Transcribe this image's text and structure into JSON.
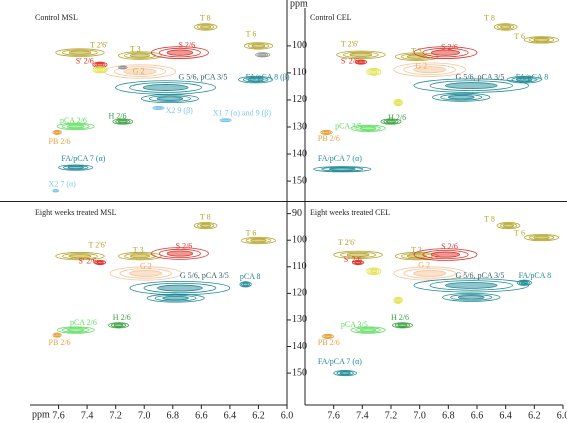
{
  "chart_data": [
    {
      "type": "contour",
      "title": "Control MSL",
      "ylabel": "ppm",
      "xlim": [
        7.8,
        6.0
      ],
      "ylim": [
        86,
        157
      ],
      "yticks": [
        100,
        110,
        120,
        130,
        140,
        150
      ],
      "peaks": [
        {
          "x": 6.57,
          "y": 93,
          "dx": 0.08,
          "dy": 1.2,
          "color": "#b5a42a"
        },
        {
          "x": 6.2,
          "y": 100,
          "dx": 0.1,
          "dy": 1.2,
          "color": "#b5a42a"
        },
        {
          "x": 7.45,
          "y": 102.5,
          "dx": 0.17,
          "dy": 1.4,
          "color": "#b5a42a"
        },
        {
          "x": 7.03,
          "y": 103.6,
          "dx": 0.15,
          "dy": 1.4,
          "color": "#b5a42a"
        },
        {
          "x": 6.75,
          "y": 102.5,
          "dx": 0.2,
          "dy": 2.2,
          "color": "#e0302a"
        },
        {
          "x": 7.31,
          "y": 107,
          "dx": 0.05,
          "dy": 1,
          "color": "#e0302a"
        },
        {
          "x": 7.03,
          "y": 109.5,
          "dx": 0.25,
          "dy": 2.5,
          "color": "#f5c49a"
        },
        {
          "x": 7.31,
          "y": 108.8,
          "dx": 0.05,
          "dy": 1.2,
          "color": "#e0e040"
        },
        {
          "x": 6.85,
          "y": 115.4,
          "dx": 0.35,
          "dy": 2.5,
          "color": "#1f8a96"
        },
        {
          "x": 6.82,
          "y": 119.5,
          "dx": 0.2,
          "dy": 1.5,
          "color": "#1f8a96"
        },
        {
          "x": 6.22,
          "y": 112.5,
          "dx": 0.12,
          "dy": 1.2,
          "color": "#1f8a96"
        },
        {
          "x": 6.43,
          "y": 127.5,
          "dx": 0.04,
          "dy": 0.6,
          "color": "#80c8e8"
        },
        {
          "x": 6.9,
          "y": 123,
          "dx": 0.04,
          "dy": 0.6,
          "color": "#80c8e8"
        },
        {
          "x": 7.15,
          "y": 128,
          "dx": 0.07,
          "dy": 1,
          "color": "#3aa040"
        },
        {
          "x": 7.48,
          "y": 129.8,
          "dx": 0.13,
          "dy": 1.2,
          "color": "#5fdd5f"
        },
        {
          "x": 7.61,
          "y": 132,
          "dx": 0.03,
          "dy": 0.8,
          "color": "#e8a040"
        },
        {
          "x": 7.48,
          "y": 145,
          "dx": 0.12,
          "dy": 1,
          "color": "#1f8a96"
        },
        {
          "x": 7.62,
          "y": 153.6,
          "dx": 0.02,
          "dy": 0.5,
          "color": "#80c8e8"
        },
        {
          "x": 7.15,
          "y": 108,
          "dx": 0.03,
          "dy": 0.6,
          "color": "#999999"
        },
        {
          "x": 6.17,
          "y": 103.3,
          "dx": 0.05,
          "dy": 0.8,
          "color": "#999999"
        }
      ],
      "labels": [
        {
          "text": "T 8",
          "x": 6.61,
          "y": 90,
          "color": "#b5a42a"
        },
        {
          "text": "T 6",
          "x": 6.29,
          "y": 95.9,
          "color": "#b5a42a"
        },
        {
          "text": "T 2'6'",
          "x": 7.38,
          "y": 100,
          "color": "#b5a42a"
        },
        {
          "text": "T 3",
          "x": 7.1,
          "y": 101.4,
          "color": "#b5a42a"
        },
        {
          "text": "S 2/6",
          "x": 6.76,
          "y": 100,
          "color": "#e0302a"
        },
        {
          "text": "S' 2/6",
          "x": 7.48,
          "y": 105.9,
          "color": "#e0302a"
        },
        {
          "text": "G 2",
          "x": 7.08,
          "y": 109.5,
          "color": "#f0a050"
        },
        {
          "text": "G 5/6, pCA 3/5",
          "x": 6.76,
          "y": 111.7,
          "color": "#2f5f66"
        },
        {
          "text": "FA/pCA 8 (β)",
          "x": 6.29,
          "y": 111.7,
          "color": "#1f8a96"
        },
        {
          "text": "X2 9 (β)",
          "x": 6.85,
          "y": 124.2,
          "color": "#80c8e8"
        },
        {
          "text": "X1 7 (α) and 9 (β)",
          "x": 6.52,
          "y": 125,
          "color": "#80c8e8"
        },
        {
          "text": "H 2/6",
          "x": 7.25,
          "y": 126.1,
          "color": "#3aa040"
        },
        {
          "text": "pCA 2/6",
          "x": 7.59,
          "y": 127.9,
          "color": "#5fdd5f"
        },
        {
          "text": "PB 2/6",
          "x": 7.67,
          "y": 135.6,
          "color": "#e8a040"
        },
        {
          "text": "FA/pCA 7 (α)",
          "x": 7.58,
          "y": 141.9,
          "color": "#1f8a96"
        },
        {
          "text": "X2 7 (α)",
          "x": 7.67,
          "y": 151.4,
          "color": "#80c8e8"
        }
      ]
    },
    {
      "type": "contour",
      "title": "Control CEL",
      "xlim": [
        7.8,
        6.0
      ],
      "ylim": [
        86,
        157
      ],
      "peaks": [
        {
          "x": 6.4,
          "y": 93,
          "dx": 0.08,
          "dy": 1.2,
          "color": "#b5a42a"
        },
        {
          "x": 6.15,
          "y": 97.8,
          "dx": 0.12,
          "dy": 1.2,
          "color": "#b5a42a"
        },
        {
          "x": 7.41,
          "y": 103.3,
          "dx": 0.17,
          "dy": 1.4,
          "color": "#b5a42a"
        },
        {
          "x": 7.02,
          "y": 104,
          "dx": 0.15,
          "dy": 1.4,
          "color": "#b5a42a"
        },
        {
          "x": 6.82,
          "y": 102.5,
          "dx": 0.22,
          "dy": 2.2,
          "color": "#e0302a"
        },
        {
          "x": 7.41,
          "y": 106,
          "dx": 0.04,
          "dy": 0.8,
          "color": "#e0302a"
        },
        {
          "x": 7.32,
          "y": 109.6,
          "dx": 0.05,
          "dy": 1.3,
          "color": "#e0e040"
        },
        {
          "x": 6.93,
          "y": 108.8,
          "dx": 0.25,
          "dy": 2.5,
          "color": "#f5c49a"
        },
        {
          "x": 6.64,
          "y": 114.7,
          "dx": 0.4,
          "dy": 2.5,
          "color": "#1f8a96"
        },
        {
          "x": 6.71,
          "y": 119,
          "dx": 0.2,
          "dy": 1.5,
          "color": "#1f8a96"
        },
        {
          "x": 6.27,
          "y": 112.5,
          "dx": 0.12,
          "dy": 1.2,
          "color": "#1f8a96"
        },
        {
          "x": 7.15,
          "y": 121,
          "dx": 0.03,
          "dy": 1.2,
          "color": "#e0e040"
        },
        {
          "x": 7.2,
          "y": 128,
          "dx": 0.07,
          "dy": 1,
          "color": "#3aa040"
        },
        {
          "x": 7.36,
          "y": 130.5,
          "dx": 0.12,
          "dy": 1.2,
          "color": "#5fdd5f"
        },
        {
          "x": 7.65,
          "y": 132,
          "dx": 0.04,
          "dy": 0.8,
          "color": "#e8a040"
        },
        {
          "x": 7.54,
          "y": 145.6,
          "dx": 0.2,
          "dy": 1,
          "color": "#1f8a96"
        }
      ],
      "labels": [
        {
          "text": "T 8",
          "x": 6.55,
          "y": 90,
          "color": "#b5a42a"
        },
        {
          "text": "T 6",
          "x": 6.34,
          "y": 96.7,
          "color": "#b5a42a"
        },
        {
          "text": "T 2'6'",
          "x": 7.55,
          "y": 99.6,
          "color": "#b5a42a"
        },
        {
          "text": "T 3",
          "x": 7.06,
          "y": 102.2,
          "color": "#b5a42a"
        },
        {
          "text": "S 2/6",
          "x": 6.85,
          "y": 100.7,
          "color": "#e0302a"
        },
        {
          "text": "S' 2/6",
          "x": 7.55,
          "y": 105.9,
          "color": "#e0302a"
        },
        {
          "text": "G 2",
          "x": 7.03,
          "y": 107.7,
          "color": "#f0a050"
        },
        {
          "text": "G 5/6, pCA 3/5",
          "x": 6.75,
          "y": 111.7,
          "color": "#2f5f66"
        },
        {
          "text": "FA/pCA 8",
          "x": 6.33,
          "y": 111.7,
          "color": "#1f8a96"
        },
        {
          "text": "H 2/6",
          "x": 7.22,
          "y": 126.8,
          "color": "#3aa040"
        },
        {
          "text": "pCA 3/5",
          "x": 7.59,
          "y": 129.8,
          "color": "#5fdd5f"
        },
        {
          "text": "PB 2/6",
          "x": 7.71,
          "y": 134.5,
          "color": "#e8a040"
        },
        {
          "text": "FA/pCA 7 (α)",
          "x": 7.71,
          "y": 141.9,
          "color": "#1f8a96"
        }
      ]
    },
    {
      "type": "contour",
      "title": "Eight weeks treated MSL",
      "xlabel": "ppm",
      "xlim": [
        7.8,
        6.0
      ],
      "ylim": [
        86,
        162
      ],
      "yticks": [
        90,
        100,
        110,
        120,
        130,
        140,
        150
      ],
      "xticks": [
        7.6,
        7.4,
        7.2,
        {
          "value": 7.0,
          "label": "7.0"
        },
        6.8,
        6.6,
        6.4,
        6.2,
        {
          "value": 6.0,
          "label": "6.0"
        }
      ],
      "peaks": [
        {
          "x": 6.57,
          "y": 94.5,
          "dx": 0.08,
          "dy": 1.2,
          "color": "#b5a42a"
        },
        {
          "x": 6.2,
          "y": 100.1,
          "dx": 0.12,
          "dy": 1.2,
          "color": "#b5a42a"
        },
        {
          "x": 7.45,
          "y": 106,
          "dx": 0.17,
          "dy": 1.4,
          "color": "#b5a42a"
        },
        {
          "x": 7.03,
          "y": 106,
          "dx": 0.15,
          "dy": 1.4,
          "color": "#b5a42a"
        },
        {
          "x": 6.75,
          "y": 105,
          "dx": 0.2,
          "dy": 2.2,
          "color": "#e0302a"
        },
        {
          "x": 7.31,
          "y": 108.4,
          "dx": 0.04,
          "dy": 0.8,
          "color": "#e0302a"
        },
        {
          "x": 6.99,
          "y": 112.5,
          "dx": 0.25,
          "dy": 2.5,
          "color": "#f5c49a"
        },
        {
          "x": 6.75,
          "y": 118,
          "dx": 0.35,
          "dy": 2.5,
          "color": "#1f8a96"
        },
        {
          "x": 6.78,
          "y": 121.8,
          "dx": 0.2,
          "dy": 1.5,
          "color": "#1f8a96"
        },
        {
          "x": 6.29,
          "y": 116.6,
          "dx": 0.04,
          "dy": 1,
          "color": "#1f8a96"
        },
        {
          "x": 7.18,
          "y": 132,
          "dx": 0.07,
          "dy": 1,
          "color": "#3aa040"
        },
        {
          "x": 7.48,
          "y": 133.8,
          "dx": 0.13,
          "dy": 1.2,
          "color": "#5fdd5f"
        },
        {
          "x": 7.61,
          "y": 135.7,
          "dx": 0.03,
          "dy": 0.8,
          "color": "#e8a040"
        }
      ],
      "labels": [
        {
          "text": "T 8",
          "x": 6.61,
          "y": 91.5,
          "color": "#b5a42a"
        },
        {
          "text": "T 6",
          "x": 6.29,
          "y": 97.5,
          "color": "#b5a42a"
        },
        {
          "text": "T 2'6'",
          "x": 7.39,
          "y": 102,
          "color": "#b5a42a"
        },
        {
          "text": "T 3",
          "x": 7.08,
          "y": 103.9,
          "color": "#b5a42a"
        },
        {
          "text": "S 2/6",
          "x": 6.78,
          "y": 102.4,
          "color": "#e0302a"
        },
        {
          "text": "S' 2/6",
          "x": 7.46,
          "y": 108,
          "color": "#e0302a"
        },
        {
          "text": "G 2",
          "x": 7.03,
          "y": 109.9,
          "color": "#f0a050"
        },
        {
          "text": "G 5/6, pCA 3/5",
          "x": 6.75,
          "y": 113.6,
          "color": "#2f5f66"
        },
        {
          "text": "pCA 8",
          "x": 6.33,
          "y": 114,
          "color": "#1f8a96"
        },
        {
          "text": "H 2/6",
          "x": 7.22,
          "y": 129.3,
          "color": "#3aa040"
        },
        {
          "text": "pCA 2/6",
          "x": 7.52,
          "y": 131.2,
          "color": "#5fdd5f"
        },
        {
          "text": "PB 2/6",
          "x": 7.67,
          "y": 138.7,
          "color": "#e8a040"
        }
      ]
    },
    {
      "type": "contour",
      "title": "Eight weeks treated CEL",
      "xlim": [
        7.8,
        6.0
      ],
      "ylim": [
        86,
        162
      ],
      "xticks": [
        7.6,
        7.4,
        7.2,
        {
          "value": 7.0,
          "label": "7.0"
        },
        6.8,
        6.6,
        6.4,
        6.2,
        {
          "value": 6.0,
          "label": "6.0"
        }
      ],
      "peaks": [
        {
          "x": 6.38,
          "y": 94.5,
          "dx": 0.08,
          "dy": 1.2,
          "color": "#b5a42a"
        },
        {
          "x": 6.15,
          "y": 99,
          "dx": 0.12,
          "dy": 1.2,
          "color": "#b5a42a"
        },
        {
          "x": 7.43,
          "y": 105.5,
          "dx": 0.17,
          "dy": 1.4,
          "color": "#b5a42a"
        },
        {
          "x": 7.02,
          "y": 106,
          "dx": 0.15,
          "dy": 1.4,
          "color": "#b5a42a"
        },
        {
          "x": 6.82,
          "y": 105.4,
          "dx": 0.22,
          "dy": 2.2,
          "color": "#e0302a"
        },
        {
          "x": 7.43,
          "y": 108.4,
          "dx": 0.04,
          "dy": 0.8,
          "color": "#e0302a"
        },
        {
          "x": 7.32,
          "y": 111.7,
          "dx": 0.05,
          "dy": 1.3,
          "color": "#e0e040"
        },
        {
          "x": 6.93,
          "y": 112.5,
          "dx": 0.25,
          "dy": 2.5,
          "color": "#f5c49a"
        },
        {
          "x": 6.64,
          "y": 117,
          "dx": 0.4,
          "dy": 2.5,
          "color": "#1f8a96"
        },
        {
          "x": 6.64,
          "y": 121.5,
          "dx": 0.2,
          "dy": 1.5,
          "color": "#1f8a96"
        },
        {
          "x": 6.27,
          "y": 116,
          "dx": 0.05,
          "dy": 1,
          "color": "#1f8a96"
        },
        {
          "x": 7.15,
          "y": 122.6,
          "dx": 0.03,
          "dy": 1.2,
          "color": "#e0e040"
        },
        {
          "x": 7.12,
          "y": 132,
          "dx": 0.07,
          "dy": 1,
          "color": "#3aa040"
        },
        {
          "x": 7.36,
          "y": 133.8,
          "dx": 0.12,
          "dy": 1.2,
          "color": "#5fdd5f"
        },
        {
          "x": 7.64,
          "y": 136.2,
          "dx": 0.04,
          "dy": 0.8,
          "color": "#e8a040"
        },
        {
          "x": 7.52,
          "y": 150,
          "dx": 0.08,
          "dy": 1,
          "color": "#1f8a96"
        }
      ],
      "labels": [
        {
          "text": "T 8",
          "x": 6.55,
          "y": 92.2,
          "color": "#b5a42a"
        },
        {
          "text": "T 6",
          "x": 6.34,
          "y": 97.5,
          "color": "#b5a42a"
        },
        {
          "text": "T 2'6'",
          "x": 7.57,
          "y": 101.2,
          "color": "#b5a42a"
        },
        {
          "text": "T 3",
          "x": 7.06,
          "y": 103.9,
          "color": "#b5a42a"
        },
        {
          "text": "S 2/6",
          "x": 6.85,
          "y": 102.7,
          "color": "#e0302a"
        },
        {
          "text": "S' 2/6",
          "x": 7.53,
          "y": 107.6,
          "color": "#e0302a"
        },
        {
          "text": "G 2",
          "x": 7.01,
          "y": 109.5,
          "color": "#f0a050"
        },
        {
          "text": "G 5/6, pCA 3/5",
          "x": 6.75,
          "y": 113.6,
          "color": "#2f5f66"
        },
        {
          "text": "FA/pCA 8",
          "x": 6.31,
          "y": 113.6,
          "color": "#1f8a96"
        },
        {
          "text": "H 2/6",
          "x": 7.2,
          "y": 129.3,
          "color": "#3aa040"
        },
        {
          "text": "pCA 3/5",
          "x": 7.55,
          "y": 131.9,
          "color": "#5fdd5f"
        },
        {
          "text": "PB 2/6",
          "x": 7.71,
          "y": 138.7,
          "color": "#e8a040"
        },
        {
          "text": "FA/pCA 7 (α)",
          "x": 7.71,
          "y": 145.8,
          "color": "#1f8a96"
        }
      ]
    }
  ]
}
